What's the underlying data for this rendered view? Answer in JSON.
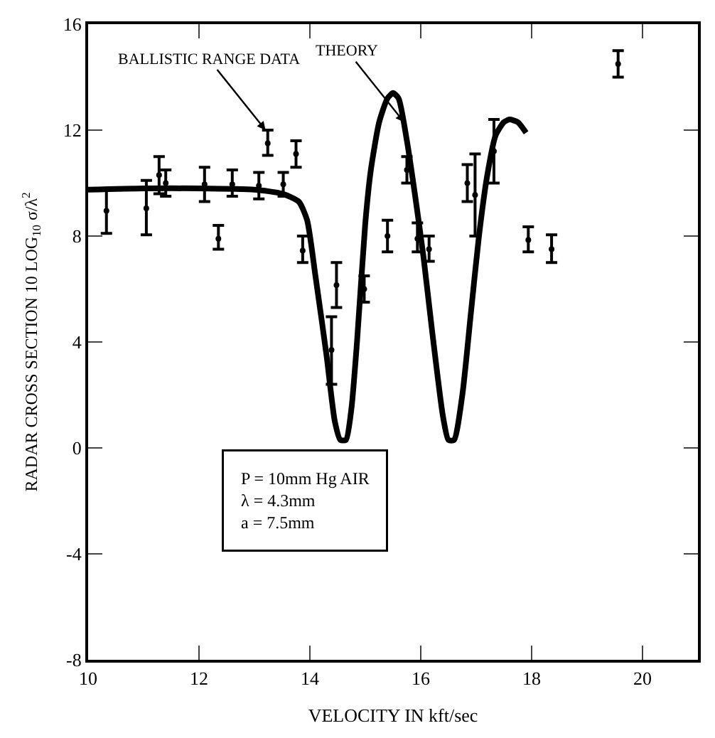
{
  "chart_data": {
    "type": "line",
    "xlabel": "VELOCITY IN kft/sec",
    "ylabel": "RADAR CROSS SECTION 10 LOG$_{10}$ σ/λ$^{2}$",
    "xlim": [
      10,
      21
    ],
    "xticks": [
      10,
      12,
      14,
      16,
      18,
      20
    ],
    "ylim": [
      -8,
      16
    ],
    "yticks": [
      -8,
      -4,
      0,
      4,
      8,
      12,
      16
    ],
    "series": [
      {
        "color": "#000000",
        "marker": "none",
        "x": [
          10,
          11,
          12,
          13,
          13.5,
          13.8,
          13.95,
          14.1,
          14.3,
          14.45,
          14.55,
          14.65,
          14.75,
          14.85,
          15.0,
          15.1,
          15.25,
          15.4,
          15.5,
          15.6,
          15.75,
          15.9,
          16.05,
          16.2,
          16.4,
          16.5,
          16.6,
          16.75,
          16.9,
          17.05,
          17.2,
          17.35,
          17.5,
          17.6,
          17.75,
          17.9
        ],
        "values": [
          9.75,
          9.8,
          9.8,
          9.75,
          9.6,
          9.3,
          8.6,
          6.5,
          3.5,
          1.0,
          0.3,
          0.3,
          1.5,
          4.0,
          8.5,
          10.5,
          12.3,
          13.2,
          13.4,
          13.2,
          11.6,
          9.5,
          7.2,
          4.5,
          1.2,
          0.3,
          0.3,
          2.0,
          5.0,
          8.0,
          10.3,
          11.8,
          12.3,
          12.4,
          12.3,
          11.9
        ]
      },
      {
        "type": "scatter",
        "color": "#000000",
        "marker": "circle",
        "x": [
          10.33,
          11.05,
          11.28,
          11.4,
          12.1,
          12.35,
          12.6,
          13.08,
          13.24,
          13.52,
          13.75,
          13.87,
          14.39,
          14.48,
          14.98,
          15.4,
          15.75,
          15.94,
          16.15,
          16.84,
          16.98,
          17.32,
          17.94,
          18.36,
          19.56
        ],
        "values": [
          8.95,
          9.05,
          10.3,
          10.0,
          9.95,
          7.9,
          9.95,
          9.9,
          11.5,
          9.95,
          11.1,
          7.45,
          3.7,
          6.15,
          6.0,
          8.0,
          10.5,
          7.9,
          7.5,
          10.0,
          9.55,
          11.2,
          7.85,
          7.5,
          14.5
        ],
        "errors": [
          [
            8.1,
            9.8
          ],
          [
            8.05,
            10.1
          ],
          [
            9.6,
            11.0
          ],
          [
            9.5,
            10.5
          ],
          [
            9.3,
            10.6
          ],
          [
            7.5,
            8.4
          ],
          [
            9.5,
            10.5
          ],
          [
            9.4,
            10.4
          ],
          [
            11.05,
            12.0
          ],
          [
            9.5,
            10.4
          ],
          [
            10.6,
            11.6
          ],
          [
            7.0,
            8.0
          ],
          [
            2.4,
            4.95
          ],
          [
            5.3,
            7.0
          ],
          [
            5.5,
            6.5
          ],
          [
            7.4,
            8.6
          ],
          [
            10.0,
            11.0
          ],
          [
            7.4,
            8.5
          ],
          [
            7.05,
            8.0
          ],
          [
            9.3,
            10.7
          ],
          [
            8.0,
            11.1
          ],
          [
            10.0,
            12.4
          ],
          [
            7.4,
            8.35
          ],
          [
            7.0,
            8.05
          ],
          [
            14.0,
            15.0
          ]
        ]
      }
    ],
    "annotations": [
      {
        "text": "BALLISTIC RANGE DATA",
        "x": 13.2,
        "y": 12.0
      },
      {
        "text": "THEORY",
        "x": 15.7,
        "y": 12.3
      },
      "P = 10mm Hg AIR",
      "λ = 4.3mm",
      "a = 7.5mm"
    ]
  }
}
